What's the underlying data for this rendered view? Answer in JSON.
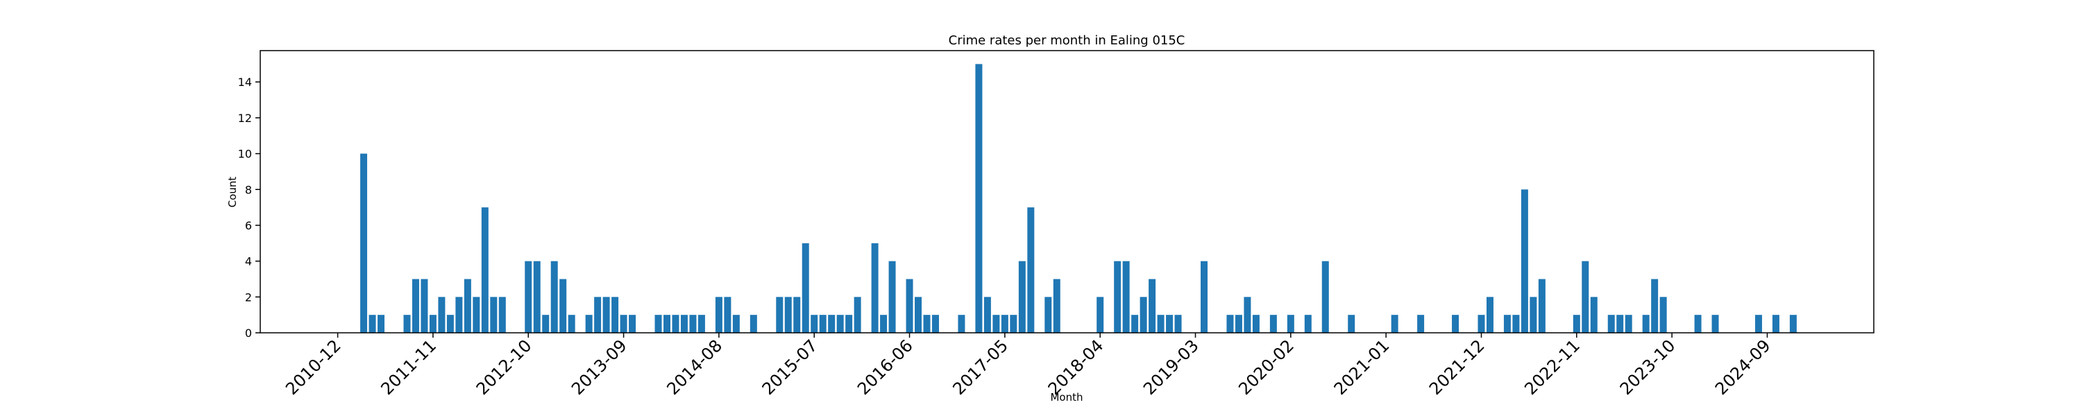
{
  "chart_data": {
    "type": "bar",
    "title": "Crime rates per month in Ealing 015C",
    "xlabel": "Month",
    "ylabel": "Count",
    "color": "#1f77b4",
    "categories": [
      "2010-12",
      null,
      null,
      null,
      null,
      null,
      null,
      null,
      null,
      null,
      null,
      "2011-11",
      null,
      null,
      null,
      null,
      null,
      null,
      null,
      null,
      null,
      null,
      "2012-10",
      null,
      null,
      null,
      null,
      null,
      null,
      null,
      null,
      null,
      null,
      "2013-09",
      null,
      null,
      null,
      null,
      null,
      null,
      null,
      null,
      null,
      null,
      "2014-08",
      null,
      null,
      null,
      null,
      null,
      null,
      null,
      null,
      null,
      null,
      "2015-07",
      null,
      null,
      null,
      null,
      null,
      null,
      null,
      null,
      null,
      null,
      "2016-06",
      null,
      null,
      null,
      null,
      null,
      null,
      null,
      null,
      null,
      null,
      "2017-05",
      null,
      null,
      null,
      null,
      null,
      null,
      null,
      null,
      null,
      null,
      "2018-04",
      null,
      null,
      null,
      null,
      null,
      null,
      null,
      null,
      null,
      null,
      "2019-03",
      null,
      null,
      null,
      null,
      null,
      null,
      null,
      null,
      null,
      null,
      "2020-02",
      null,
      null,
      null,
      null,
      null,
      null,
      null,
      null,
      null,
      null,
      "2021-01",
      null,
      null,
      null,
      null,
      null,
      null,
      null,
      null,
      null,
      null,
      "2021-12",
      null,
      null,
      null,
      null,
      null,
      null,
      null,
      null,
      null,
      null,
      "2022-11",
      null,
      null,
      null,
      null,
      null,
      null,
      null,
      null,
      null,
      null,
      "2023-10",
      null,
      null,
      null,
      null,
      null,
      null,
      null,
      null,
      null,
      null,
      "2024-09",
      null,
      null,
      null
    ],
    "values": [
      0,
      0,
      0,
      10,
      1,
      1,
      0,
      0,
      1,
      3,
      3,
      1,
      2,
      1,
      2,
      3,
      2,
      7,
      2,
      2,
      0,
      0,
      4,
      4,
      1,
      4,
      3,
      1,
      0,
      1,
      2,
      2,
      2,
      1,
      1,
      0,
      0,
      1,
      1,
      1,
      1,
      1,
      1,
      0,
      2,
      2,
      1,
      0,
      1,
      0,
      0,
      2,
      2,
      2,
      5,
      1,
      1,
      1,
      1,
      1,
      2,
      0,
      5,
      1,
      4,
      0,
      3,
      2,
      1,
      1,
      0,
      0,
      1,
      0,
      15,
      2,
      1,
      1,
      1,
      4,
      7,
      0,
      2,
      3,
      0,
      0,
      0,
      0,
      2,
      0,
      4,
      4,
      1,
      2,
      3,
      1,
      1,
      1,
      0,
      0,
      4,
      0,
      0,
      1,
      1,
      2,
      1,
      0,
      1,
      0,
      1,
      0,
      1,
      0,
      4,
      0,
      0,
      1,
      0,
      0,
      0,
      0,
      1,
      0,
      0,
      1,
      0,
      0,
      0,
      1,
      0,
      0,
      1,
      2,
      0,
      1,
      1,
      8,
      2,
      3,
      0,
      0,
      0,
      1,
      4,
      2,
      0,
      1,
      1,
      1,
      0,
      1,
      3,
      2,
      0,
      0,
      0,
      1,
      0,
      1,
      0,
      0,
      0,
      0,
      1,
      0,
      1,
      0,
      1
    ],
    "ylim": [
      0,
      15.75
    ],
    "yticks": [
      0,
      2,
      4,
      6,
      8,
      10,
      12,
      14
    ]
  }
}
